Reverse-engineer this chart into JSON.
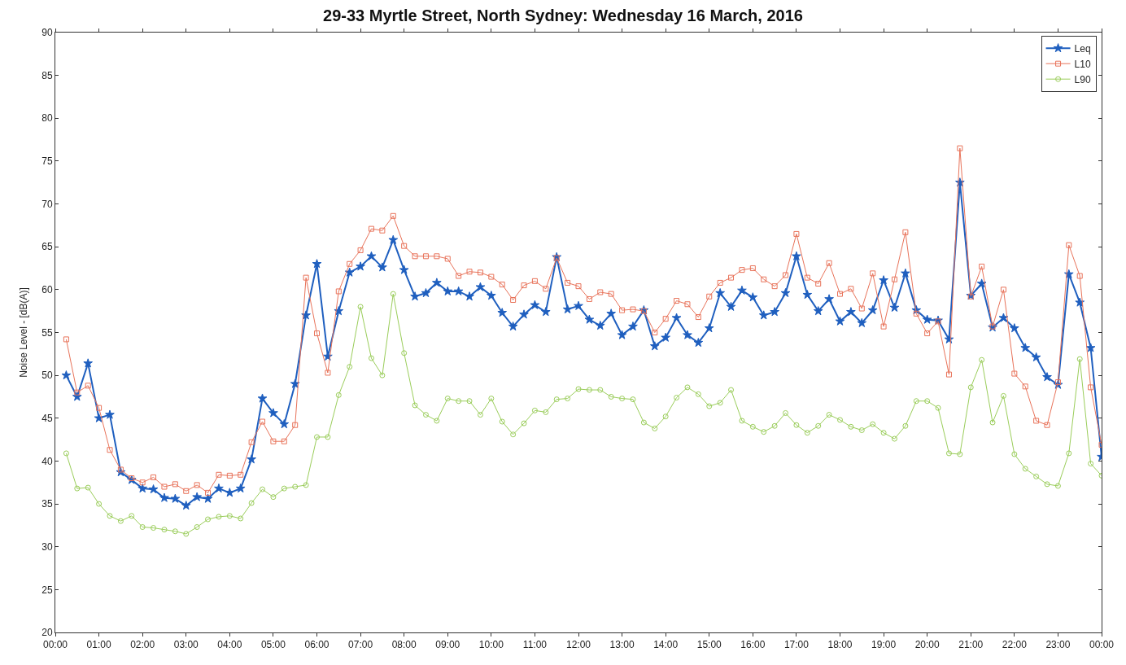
{
  "chart_data": {
    "type": "line",
    "title": "29-33 Myrtle Street, North Sydney: Wednesday 16 March, 2016",
    "ylabel": "Noise Level - [dB(A)]",
    "x": [
      0.25,
      0.5,
      0.75,
      1,
      1.25,
      1.5,
      1.75,
      2,
      2.25,
      2.5,
      2.75,
      3,
      3.25,
      3.5,
      3.75,
      4,
      4.25,
      4.5,
      4.75,
      5,
      5.25,
      5.5,
      5.75,
      6,
      6.25,
      6.5,
      6.75,
      7,
      7.25,
      7.5,
      7.75,
      8,
      8.25,
      8.5,
      8.75,
      9,
      9.25,
      9.5,
      9.75,
      10,
      10.25,
      10.5,
      10.75,
      11,
      11.25,
      11.5,
      11.75,
      12,
      12.25,
      12.5,
      12.75,
      13,
      13.25,
      13.5,
      13.75,
      14,
      14.25,
      14.5,
      14.75,
      15,
      15.25,
      15.5,
      15.75,
      16,
      16.25,
      16.5,
      16.75,
      17,
      17.25,
      17.5,
      17.75,
      18,
      18.25,
      18.5,
      18.75,
      19,
      19.25,
      19.5,
      19.75,
      20,
      20.25,
      20.5,
      20.75,
      21,
      21.25,
      21.5,
      21.75,
      22,
      22.25,
      22.5,
      22.75,
      23,
      23.25,
      23.5,
      23.75,
      24
    ],
    "series": [
      {
        "name": "Leq",
        "color": "#1f5fbf",
        "marker": "star",
        "values": [
          50.0,
          47.5,
          51.4,
          45.0,
          45.4,
          38.7,
          37.8,
          36.8,
          36.7,
          35.7,
          35.6,
          34.8,
          35.8,
          35.6,
          36.8,
          36.3,
          36.8,
          40.2,
          47.3,
          45.6,
          44.3,
          49.0,
          57.0,
          63.0,
          52.2,
          57.5,
          62.0,
          62.7,
          63.9,
          62.6,
          65.8,
          62.3,
          59.2,
          59.6,
          60.8,
          59.8,
          59.8,
          59.2,
          60.3,
          59.3,
          57.3,
          55.7,
          57.1,
          58.2,
          57.4,
          63.8,
          57.7,
          58.1,
          56.5,
          55.8,
          57.2,
          54.7,
          55.7,
          57.6,
          53.4,
          54.4,
          56.7,
          54.7,
          53.8,
          55.5,
          59.6,
          58.0,
          59.9,
          59.1,
          57.0,
          57.4,
          59.6,
          63.9,
          59.4,
          57.5,
          58.9,
          56.3,
          57.4,
          56.1,
          57.6,
          61.1,
          57.9,
          61.9,
          57.6,
          56.5,
          56.4,
          54.2,
          72.5,
          59.3,
          60.7,
          55.6,
          56.7,
          55.5,
          53.2,
          52.1,
          49.8,
          48.9,
          61.8,
          58.5,
          53.2,
          40.5
        ]
      },
      {
        "name": "L10",
        "color": "#e8735a",
        "marker": "square",
        "values": [
          54.2,
          48.0,
          48.8,
          46.2,
          41.3,
          39.0,
          38.0,
          37.5,
          38.1,
          37.0,
          37.3,
          36.5,
          37.2,
          36.3,
          38.4,
          38.3,
          38.4,
          42.2,
          44.6,
          42.3,
          42.3,
          44.2,
          61.4,
          54.9,
          50.3,
          59.8,
          63.0,
          64.6,
          67.1,
          66.9,
          68.6,
          65.1,
          63.9,
          63.9,
          63.9,
          63.6,
          61.6,
          62.1,
          62.0,
          61.5,
          60.6,
          58.8,
          60.5,
          61.0,
          60.1,
          63.7,
          60.8,
          60.4,
          58.9,
          59.7,
          59.5,
          57.6,
          57.7,
          57.5,
          55.0,
          56.6,
          58.7,
          58.3,
          56.8,
          59.2,
          60.8,
          61.4,
          62.3,
          62.5,
          61.2,
          60.4,
          61.7,
          66.5,
          61.4,
          60.7,
          63.1,
          59.5,
          60.1,
          57.8,
          61.9,
          55.7,
          61.2,
          66.7,
          57.2,
          54.9,
          56.3,
          50.1,
          76.5,
          59.2,
          62.7,
          55.7,
          60.0,
          50.2,
          48.7,
          44.7,
          44.2,
          49.2,
          65.2,
          61.6,
          48.6,
          41.9
        ]
      },
      {
        "name": "L90",
        "color": "#9acd5a",
        "marker": "circle",
        "values": [
          40.9,
          36.8,
          36.9,
          35.0,
          33.6,
          33.0,
          33.6,
          32.3,
          32.2,
          32.0,
          31.8,
          31.5,
          32.3,
          33.2,
          33.5,
          33.6,
          33.3,
          35.1,
          36.7,
          35.8,
          36.8,
          37.0,
          37.2,
          42.8,
          42.8,
          47.7,
          51.0,
          58.0,
          52.0,
          50.0,
          59.5,
          52.6,
          46.5,
          45.4,
          44.7,
          47.3,
          47.0,
          47.0,
          45.4,
          47.3,
          44.6,
          43.1,
          44.4,
          45.9,
          45.7,
          47.2,
          47.3,
          48.4,
          48.3,
          48.3,
          47.5,
          47.3,
          47.2,
          44.5,
          43.8,
          45.2,
          47.4,
          48.6,
          47.8,
          46.4,
          46.8,
          48.3,
          44.7,
          44.0,
          43.4,
          44.1,
          45.6,
          44.2,
          43.3,
          44.1,
          45.4,
          44.8,
          44.0,
          43.6,
          44.3,
          43.3,
          42.6,
          44.1,
          47.0,
          47.0,
          46.2,
          40.9,
          40.8,
          48.6,
          51.8,
          44.5,
          47.6,
          40.8,
          39.1,
          38.2,
          37.3,
          37.1,
          40.9,
          51.9,
          39.7,
          38.3
        ]
      }
    ],
    "xlim": [
      0,
      24
    ],
    "xticks": [
      {
        "value": 0,
        "label": "00:00"
      },
      {
        "value": 1,
        "label": "01:00"
      },
      {
        "value": 2,
        "label": "02:00"
      },
      {
        "value": 3,
        "label": "03:00"
      },
      {
        "value": 4,
        "label": "04:00"
      },
      {
        "value": 5,
        "label": "05:00"
      },
      {
        "value": 6,
        "label": "06:00"
      },
      {
        "value": 7,
        "label": "07:00"
      },
      {
        "value": 8,
        "label": "08:00"
      },
      {
        "value": 9,
        "label": "09:00"
      },
      {
        "value": 10,
        "label": "10:00"
      },
      {
        "value": 11,
        "label": "11:00"
      },
      {
        "value": 12,
        "label": "12:00"
      },
      {
        "value": 13,
        "label": "13:00"
      },
      {
        "value": 14,
        "label": "14:00"
      },
      {
        "value": 15,
        "label": "15:00"
      },
      {
        "value": 16,
        "label": "16:00"
      },
      {
        "value": 17,
        "label": "17:00"
      },
      {
        "value": 18,
        "label": "18:00"
      },
      {
        "value": 19,
        "label": "19:00"
      },
      {
        "value": 20,
        "label": "20:00"
      },
      {
        "value": 21,
        "label": "21:00"
      },
      {
        "value": 22,
        "label": "22:00"
      },
      {
        "value": 23,
        "label": "23:00"
      },
      {
        "value": 24,
        "label": "00:00"
      }
    ],
    "ylim": [
      20,
      90
    ],
    "yticks": [
      20,
      25,
      30,
      35,
      40,
      45,
      50,
      55,
      60,
      65,
      70,
      75,
      80,
      85,
      90
    ],
    "legend": "top right",
    "line_style": "solid"
  }
}
